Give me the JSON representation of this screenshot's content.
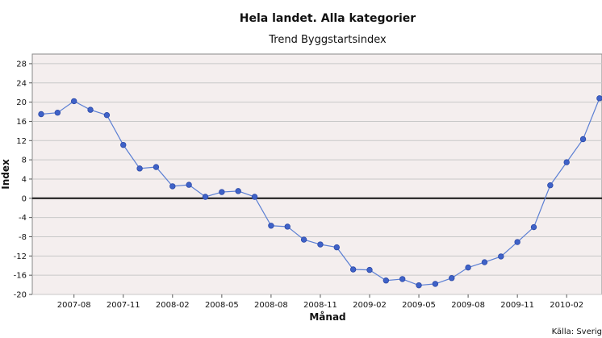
{
  "chart_data": {
    "type": "line",
    "title": "Hela landet. Alla kategorier",
    "subtitle": "Trend Byggstartsindex",
    "xlabel": "Månad",
    "ylabel": "Index",
    "source_note": "Källa: Sverig",
    "ylim": [
      -20,
      30
    ],
    "yticks": [
      28,
      24,
      20,
      16,
      12,
      8,
      4,
      0,
      -4,
      -8,
      -12,
      -16,
      -20
    ],
    "xtick_labels": [
      "2007-08",
      "2007-11",
      "2008-02",
      "2008-05",
      "2008-08",
      "2008-11",
      "2009-02",
      "2009-05",
      "2009-08",
      "2009-11",
      "2010-02"
    ],
    "xtick_partial_label": "2",
    "grid": true,
    "zero_line": true,
    "colors": {
      "line": "#5b7fd3",
      "marker": "#3f62c8",
      "plot_bg": "#f4eeee",
      "grid": "#c8c8c8"
    },
    "series": [
      {
        "x": [
          "2007-06",
          "2007-07",
          "2007-08",
          "2007-09",
          "2007-10",
          "2007-11",
          "2007-12",
          "2008-01",
          "2008-02",
          "2008-03",
          "2008-04",
          "2008-05",
          "2008-06",
          "2008-07",
          "2008-08",
          "2008-09",
          "2008-10",
          "2008-11",
          "2008-12",
          "2009-01",
          "2009-02",
          "2009-03",
          "2009-04",
          "2009-05",
          "2009-06",
          "2009-07",
          "2009-08",
          "2009-09",
          "2009-10",
          "2009-11",
          "2009-12",
          "2010-01",
          "2010-02",
          "2010-03",
          "2010-04"
        ],
        "values": [
          17.5,
          17.8,
          20.2,
          18.4,
          17.3,
          11.1,
          6.2,
          6.5,
          2.5,
          2.8,
          0.3,
          1.3,
          1.5,
          0.3,
          -5.7,
          -5.9,
          -8.6,
          -9.6,
          -10.2,
          -14.8,
          -14.9,
          -17.1,
          -16.8,
          -18.1,
          -17.8,
          -16.6,
          -14.4,
          -13.3,
          -12.1,
          -9.1,
          -6.0,
          2.7,
          7.5,
          12.3,
          20.8
        ]
      }
    ]
  }
}
